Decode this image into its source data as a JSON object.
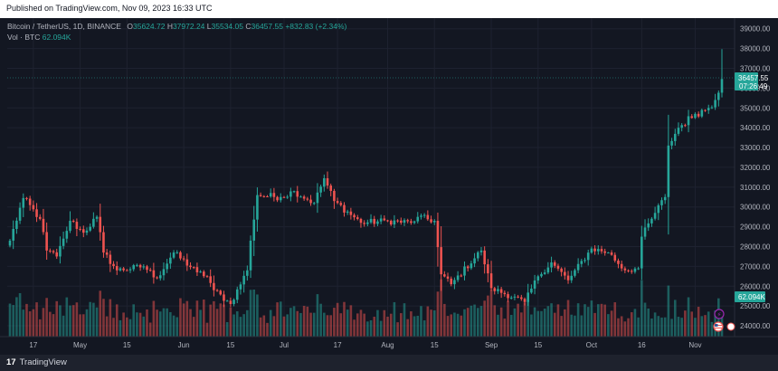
{
  "publish_bar": {
    "text": "Published on TradingView.com, Nov 09, 2023 16:33 UTC"
  },
  "legend": {
    "symbol": "Bitcoin / TetherUS, 1D, BINANCE",
    "o_label": "O",
    "o_value": "35624.72",
    "h_label": "H",
    "h_value": "37972.24",
    "l_label": "L",
    "l_value": "35534.05",
    "c_label": "C",
    "c_value": "36457.55",
    "change": "+832.83 (+2.34%)",
    "vol_label": "Vol · BTC",
    "vol_value": "62.094K"
  },
  "price_axis": {
    "ticks": [
      "39000.00",
      "38000.00",
      "37000.00",
      "36000.00",
      "35000.00",
      "34000.00",
      "33000.00",
      "32000.00",
      "31000.00",
      "30000.00",
      "29000.00",
      "28000.00",
      "27000.00",
      "26000.00",
      "25000.00",
      "24000.00"
    ],
    "current_price": "36457.55",
    "countdown": "07:26:49",
    "volume_tag": "62.094K"
  },
  "time_axis": {
    "ticks": [
      "17",
      "May",
      "15",
      "Jun",
      "15",
      "Jul",
      "17",
      "Aug",
      "15",
      "Sep",
      "15",
      "Oct",
      "16",
      "Nov"
    ]
  },
  "colors": {
    "up": "#26a69a",
    "down": "#ef5350",
    "background": "#131722",
    "grid": "#1e2230"
  },
  "footer": {
    "logo_mark": "17",
    "brand": "TradingView"
  },
  "chart_data": {
    "type": "candlestick",
    "symbol": "BTCUSDT",
    "interval": "1D",
    "ylim": [
      23500,
      39400
    ],
    "x_ticks": [
      "17",
      "May",
      "15",
      "Jun",
      "15",
      "Jul",
      "17",
      "Aug",
      "15",
      "Sep",
      "15",
      "Oct",
      "16",
      "Nov"
    ],
    "last_close": 36457.55,
    "last_volume": "62.094K",
    "waypoints": [
      [
        "2023-04-10",
        28300
      ],
      [
        "2023-04-14",
        30450
      ],
      [
        "2023-04-19",
        29400
      ],
      [
        "2023-04-21",
        27800
      ],
      [
        "2023-04-24",
        27500
      ],
      [
        "2023-04-26",
        28400
      ],
      [
        "2023-04-28",
        29300
      ],
      [
        "2023-05-02",
        28700
      ],
      [
        "2023-05-06",
        29500
      ],
      [
        "2023-05-08",
        27700
      ],
      [
        "2023-05-12",
        26800
      ],
      [
        "2023-05-20",
        27000
      ],
      [
        "2023-05-24",
        26400
      ],
      [
        "2023-05-29",
        27700
      ],
      [
        "2023-06-05",
        26700
      ],
      [
        "2023-06-08",
        26500
      ],
      [
        "2023-06-10",
        25800
      ],
      [
        "2023-06-15",
        25100
      ],
      [
        "2023-06-20",
        26800
      ],
      [
        "2023-06-21",
        28300
      ],
      [
        "2023-06-23",
        30600
      ],
      [
        "2023-06-30",
        30500
      ],
      [
        "2023-07-04",
        30800
      ],
      [
        "2023-07-10",
        30200
      ],
      [
        "2023-07-13",
        31450
      ],
      [
        "2023-07-16",
        30300
      ],
      [
        "2023-07-24",
        29200
      ],
      [
        "2023-08-01",
        29300
      ],
      [
        "2023-08-08",
        29200
      ],
      [
        "2023-08-10",
        29500
      ],
      [
        "2023-08-15",
        29300
      ],
      [
        "2023-08-17",
        26600
      ],
      [
        "2023-08-20",
        26100
      ],
      [
        "2023-08-29",
        27800
      ],
      [
        "2023-09-01",
        25900
      ],
      [
        "2023-09-11",
        25200
      ],
      [
        "2023-09-15",
        26500
      ],
      [
        "2023-09-19",
        27200
      ],
      [
        "2023-09-24",
        26300
      ],
      [
        "2023-10-01",
        27900
      ],
      [
        "2023-10-06",
        27700
      ],
      [
        "2023-10-11",
        26800
      ],
      [
        "2023-10-15",
        26900
      ],
      [
        "2023-10-16",
        28500
      ],
      [
        "2023-10-20",
        29700
      ],
      [
        "2023-10-23",
        30500
      ],
      [
        "2023-10-24",
        33100
      ],
      [
        "2023-10-27",
        34000
      ],
      [
        "2023-11-01",
        34700
      ],
      [
        "2023-11-05",
        35000
      ],
      [
        "2023-11-07",
        35400
      ],
      [
        "2023-11-09",
        36457.55
      ]
    ]
  }
}
